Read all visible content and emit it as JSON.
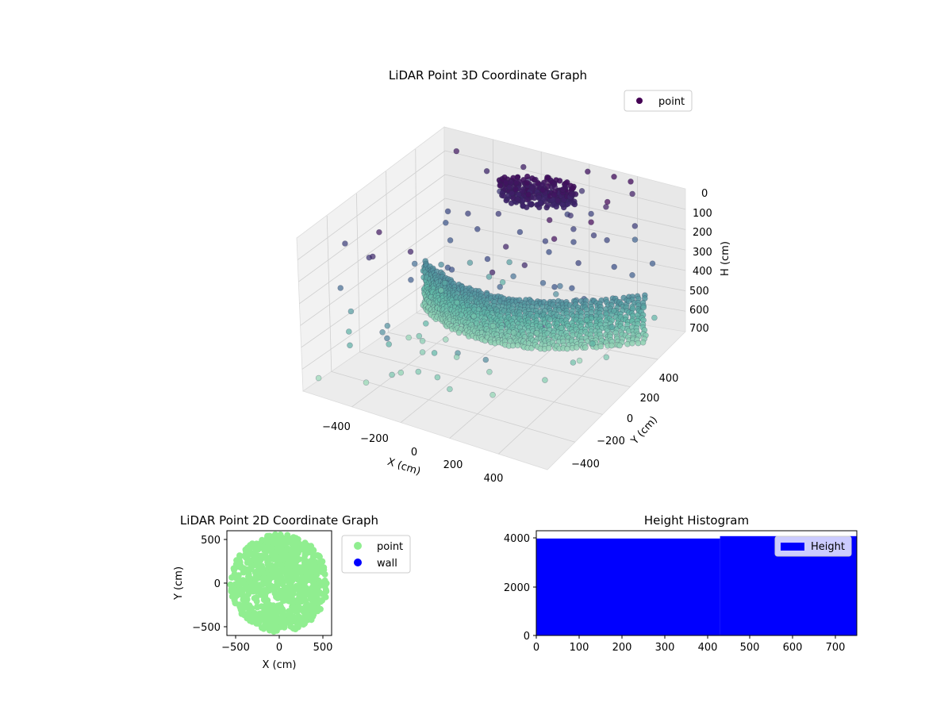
{
  "chart_data": [
    {
      "type": "scatter",
      "subtype": "3d-scatter",
      "title": "LiDAR Point 3D Coordinate Graph",
      "xlabel": "X (cm)",
      "ylabel": "Y (cm)",
      "zlabel": "H (cm)",
      "xlim": [
        -550,
        550
      ],
      "ylim": [
        -550,
        550
      ],
      "zlim": [
        0,
        750
      ],
      "z_axis_inverted": true,
      "x_ticks": [
        "−400",
        "−200",
        "0",
        "200",
        "400"
      ],
      "y_ticks": [
        "−400",
        "−200",
        "0",
        "200",
        "400"
      ],
      "z_ticks": [
        "0",
        "100",
        "200",
        "300",
        "400",
        "500",
        "600",
        "700"
      ],
      "legend": {
        "entries": [
          "point"
        ],
        "placement": "upper-right",
        "marker_color": "#440154"
      },
      "colormap": "viridis",
      "grid": true,
      "series": [
        {
          "name": "point",
          "description_of_distribution": "dense curved wall of points along the back at high height, dense canopy cluster near top center, sparse scattered outliers",
          "wall_arc": {
            "x_range": [
              -500,
              500
            ],
            "y_center": 150,
            "z_range": [
              500,
              720
            ]
          },
          "canopy_cluster": {
            "x_center": 50,
            "y_center": 250,
            "z_range": [
              40,
              120
            ]
          },
          "sample_points": [
            [
              -450,
              350,
              640
            ],
            [
              -420,
              300,
              500
            ],
            [
              -380,
              260,
              560
            ],
            [
              -300,
              220,
              620
            ],
            [
              -200,
              180,
              650
            ],
            [
              -100,
              160,
              670
            ],
            [
              0,
              150,
              680
            ],
            [
              100,
              160,
              670
            ],
            [
              200,
              180,
              640
            ],
            [
              300,
              210,
              600
            ],
            [
              400,
              250,
              560
            ],
            [
              450,
              280,
              520
            ],
            [
              -100,
              300,
              80
            ],
            [
              0,
              320,
              60
            ],
            [
              100,
              300,
              70
            ],
            [
              50,
              260,
              110
            ],
            [
              -350,
              -400,
              740
            ],
            [
              -250,
              -300,
              720
            ],
            [
              200,
              -350,
              730
            ],
            [
              350,
              -200,
              700
            ],
            [
              420,
              -100,
              650
            ],
            [
              450,
              0,
              600
            ],
            [
              480,
              100,
              560
            ],
            [
              -300,
              450,
              120
            ],
            [
              -150,
              480,
              90
            ],
            [
              150,
              470,
              60
            ],
            [
              300,
              420,
              40
            ],
            [
              400,
              380,
              30
            ]
          ]
        }
      ]
    },
    {
      "type": "scatter",
      "title": "LiDAR Point 2D Coordinate Graph",
      "xlabel": "X (cm)",
      "ylabel": "Y (cm)",
      "xlim": [
        -600,
        600
      ],
      "ylim": [
        -600,
        600
      ],
      "x_ticks": [
        "−500",
        "0",
        "500"
      ],
      "y_ticks": [
        "500",
        "0",
        "−500"
      ],
      "grid": false,
      "legend": {
        "entries": [
          "point",
          "wall"
        ],
        "placement": "outside-right"
      },
      "series": [
        {
          "name": "point",
          "color": "#90ee90",
          "description_of_distribution": "nearly circular filled disc of radius ~550 cm, with a thin gap near y = -230"
        },
        {
          "name": "wall",
          "color": "#0000ff",
          "points": []
        }
      ]
    },
    {
      "type": "bar",
      "subtype": "histogram",
      "title": "Height Histogram",
      "xlim": [
        0,
        750
      ],
      "ylim": [
        0,
        4300
      ],
      "x_ticks": [
        "0",
        "100",
        "200",
        "300",
        "400",
        "500",
        "600",
        "700"
      ],
      "y_ticks": [
        "0",
        "2000",
        "4000"
      ],
      "legend": {
        "entries": [
          "Height"
        ],
        "placement": "upper-right",
        "color": "#0000ff"
      },
      "bins": [
        {
          "range": [
            0,
            430
          ],
          "count": 3980
        },
        {
          "range": [
            430,
            750
          ],
          "count": 4080
        }
      ]
    }
  ]
}
